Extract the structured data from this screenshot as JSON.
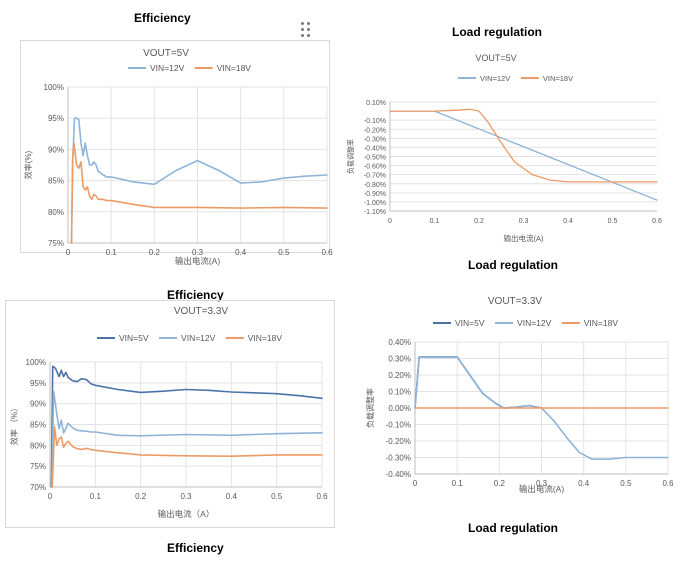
{
  "headings": {
    "top_left": "Efficiency",
    "top_right": "Load regulation",
    "mid_left": "Efficiency",
    "mid_right": "Load regulation",
    "bottom_left": "Efficiency",
    "bottom_right": "Load regulation"
  },
  "drag_handle": {
    "icon": "drag-handle-icon"
  },
  "chart_data": [
    {
      "id": "c1",
      "type": "line",
      "title": "VOUT=5V",
      "xlabel": "输出电流(A)",
      "ylabel": "效率(%)",
      "xlim": [
        0,
        0.6
      ],
      "ylim": [
        75,
        100
      ],
      "x_ticks": [
        "0",
        "0.1",
        "0.2",
        "0.3",
        "0.4",
        "0.5",
        "0.6"
      ],
      "y_ticks": [
        "75%",
        "80%",
        "85%",
        "90%",
        "95%",
        "100%"
      ],
      "grid": true,
      "legend": "top",
      "series": [
        {
          "name": "VIN=12V",
          "color": "#8fb4d9",
          "points": [
            [
              0.008,
              75
            ],
            [
              0.011,
              88
            ],
            [
              0.015,
              95
            ],
            [
              0.02,
              95
            ],
            [
              0.025,
              94.8
            ],
            [
              0.03,
              91
            ],
            [
              0.035,
              89
            ],
            [
              0.04,
              91
            ],
            [
              0.045,
              89
            ],
            [
              0.05,
              87.5
            ],
            [
              0.055,
              87.5
            ],
            [
              0.06,
              88
            ],
            [
              0.065,
              87.5
            ],
            [
              0.07,
              86.5
            ],
            [
              0.08,
              86
            ],
            [
              0.09,
              85.6
            ],
            [
              0.1,
              85.6
            ],
            [
              0.15,
              84.8
            ],
            [
              0.2,
              84.4
            ],
            [
              0.25,
              86.6
            ],
            [
              0.3,
              88.2
            ],
            [
              0.35,
              86.6
            ],
            [
              0.4,
              84.6
            ],
            [
              0.45,
              84.8
            ],
            [
              0.5,
              85.4
            ],
            [
              0.55,
              85.7
            ],
            [
              0.6,
              85.9
            ]
          ]
        },
        {
          "name": "VIN=18V",
          "color": "#ed9b66",
          "points": [
            [
              0.008,
              75
            ],
            [
              0.011,
              89
            ],
            [
              0.014,
              91
            ],
            [
              0.02,
              87.5
            ],
            [
              0.025,
              87
            ],
            [
              0.03,
              88
            ],
            [
              0.035,
              84
            ],
            [
              0.04,
              83.5
            ],
            [
              0.045,
              84
            ],
            [
              0.05,
              82.5
            ],
            [
              0.055,
              82
            ],
            [
              0.06,
              82.8
            ],
            [
              0.065,
              82.5
            ],
            [
              0.07,
              82
            ],
            [
              0.08,
              82
            ],
            [
              0.09,
              81.8
            ],
            [
              0.1,
              81.8
            ],
            [
              0.15,
              81.2
            ],
            [
              0.2,
              80.7
            ],
            [
              0.3,
              80.7
            ],
            [
              0.4,
              80.6
            ],
            [
              0.5,
              80.7
            ],
            [
              0.6,
              80.6
            ]
          ]
        }
      ]
    },
    {
      "id": "c2",
      "type": "line",
      "title": "VOUT=5V",
      "xlabel": "输出电流(A)",
      "ylabel": "负载调整率",
      "xlim": [
        0,
        0.6
      ],
      "ylim": [
        -1.1,
        0.1
      ],
      "x_ticks": [
        "0",
        "0.1",
        "0.2",
        "0.3",
        "0.4",
        "0.5",
        "0.6"
      ],
      "y_ticks": [
        "0.10%",
        "-0.10%",
        "-0.20%",
        "-0.30%",
        "-0.40%",
        "-0.50%",
        "-0.60%",
        "-0.70%",
        "-0.80%",
        "-0.90%",
        "-1.00%",
        "-1.10%"
      ],
      "grid": true,
      "legend": "top",
      "series": [
        {
          "name": "VIN=12V",
          "color": "#8fb4d9",
          "points": [
            [
              0,
              0
            ],
            [
              0.1,
              0
            ],
            [
              0.6,
              -0.98
            ]
          ]
        },
        {
          "name": "VIN=18V",
          "color": "#ed9b66",
          "points": [
            [
              0,
              0
            ],
            [
              0.1,
              0
            ],
            [
              0.15,
              0.01
            ],
            [
              0.18,
              0.02
            ],
            [
              0.2,
              0
            ],
            [
              0.22,
              -0.12
            ],
            [
              0.25,
              -0.35
            ],
            [
              0.28,
              -0.56
            ],
            [
              0.32,
              -0.7
            ],
            [
              0.36,
              -0.76
            ],
            [
              0.4,
              -0.78
            ],
            [
              0.45,
              -0.78
            ],
            [
              0.5,
              -0.78
            ],
            [
              0.6,
              -0.78
            ]
          ]
        }
      ]
    },
    {
      "id": "c3",
      "type": "line",
      "title": "VOUT=3.3V",
      "xlabel": "输出电流（A）",
      "ylabel": "效率 （%）",
      "xlim": [
        0,
        0.6
      ],
      "ylim": [
        70,
        100
      ],
      "x_ticks": [
        "0",
        "0.1",
        "0.2",
        "0.3",
        "0.4",
        "0.5",
        "0.6"
      ],
      "y_ticks": [
        "70%",
        "75%",
        "80%",
        "85%",
        "90%",
        "95%",
        "100%"
      ],
      "grid": true,
      "legend": "top",
      "series": [
        {
          "name": "VIN=5V",
          "color": "#4b73a8",
          "points": [
            [
              0.003,
              70
            ],
            [
              0.006,
              99
            ],
            [
              0.012,
              98.5
            ],
            [
              0.02,
              96.5
            ],
            [
              0.025,
              98
            ],
            [
              0.03,
              96.5
            ],
            [
              0.035,
              97.5
            ],
            [
              0.04,
              96.3
            ],
            [
              0.05,
              95.5
            ],
            [
              0.06,
              95.3
            ],
            [
              0.07,
              96
            ],
            [
              0.08,
              95.8
            ],
            [
              0.09,
              94.8
            ],
            [
              0.1,
              94.4
            ],
            [
              0.15,
              93.4
            ],
            [
              0.2,
              92.7
            ],
            [
              0.25,
              93
            ],
            [
              0.3,
              93.4
            ],
            [
              0.35,
              93.2
            ],
            [
              0.4,
              92.8
            ],
            [
              0.45,
              92.6
            ],
            [
              0.5,
              92.4
            ],
            [
              0.55,
              91.9
            ],
            [
              0.6,
              91.3
            ]
          ]
        },
        {
          "name": "VIN=12V",
          "color": "#8fb4d9",
          "points": [
            [
              0.004,
              70
            ],
            [
              0.008,
              93
            ],
            [
              0.015,
              87.5
            ],
            [
              0.02,
              84
            ],
            [
              0.025,
              86
            ],
            [
              0.03,
              83
            ],
            [
              0.035,
              84
            ],
            [
              0.04,
              85.3
            ],
            [
              0.05,
              84.2
            ],
            [
              0.06,
              83.6
            ],
            [
              0.07,
              83.5
            ],
            [
              0.08,
              83.4
            ],
            [
              0.09,
              83.2
            ],
            [
              0.1,
              83.2
            ],
            [
              0.15,
              82.4
            ],
            [
              0.2,
              82.3
            ],
            [
              0.3,
              82.6
            ],
            [
              0.4,
              82.4
            ],
            [
              0.5,
              82.8
            ],
            [
              0.6,
              83
            ]
          ]
        },
        {
          "name": "VIN=18V",
          "color": "#ed9b66",
          "points": [
            [
              0.005,
              70
            ],
            [
              0.01,
              84.5
            ],
            [
              0.015,
              80
            ],
            [
              0.02,
              81.5
            ],
            [
              0.025,
              82
            ],
            [
              0.03,
              79.5
            ],
            [
              0.035,
              80.5
            ],
            [
              0.04,
              81
            ],
            [
              0.05,
              79.7
            ],
            [
              0.06,
              79.2
            ],
            [
              0.07,
              79
            ],
            [
              0.08,
              79.3
            ],
            [
              0.09,
              79
            ],
            [
              0.1,
              78.8
            ],
            [
              0.15,
              78.2
            ],
            [
              0.2,
              77.7
            ],
            [
              0.3,
              77.5
            ],
            [
              0.4,
              77.4
            ],
            [
              0.5,
              77.7
            ],
            [
              0.6,
              77.7
            ]
          ]
        }
      ]
    },
    {
      "id": "c4",
      "type": "line",
      "title": "VOUT=3.3V",
      "xlabel": "输出电流(A)",
      "ylabel": "负载调整率",
      "xlim": [
        0,
        0.6
      ],
      "ylim": [
        -0.4,
        0.4
      ],
      "x_ticks": [
        "0",
        "0.1",
        "0.2",
        "0.3",
        "0.4",
        "0.5",
        "0.6"
      ],
      "y_ticks": [
        "0.40%",
        "0.30%",
        "0.20%",
        "0.10%",
        "0.00%",
        "-0.10%",
        "-0.20%",
        "-0.30%",
        "-0.40%"
      ],
      "grid": true,
      "legend": "top",
      "series": [
        {
          "name": "VIN=5V",
          "color": "#4b73a8",
          "points": [
            [
              0,
              0
            ],
            [
              0.01,
              0.31
            ],
            [
              0.05,
              0.31
            ],
            [
              0.1,
              0.31
            ],
            [
              0.13,
              0.2
            ],
            [
              0.16,
              0.09
            ],
            [
              0.19,
              0.03
            ],
            [
              0.21,
              0
            ],
            [
              0.24,
              0.005
            ],
            [
              0.27,
              0.015
            ],
            [
              0.3,
              0
            ]
          ]
        },
        {
          "name": "VIN=12V",
          "color": "#8fb4d9",
          "points": [
            [
              0,
              0
            ],
            [
              0.01,
              0.31
            ],
            [
              0.05,
              0.31
            ],
            [
              0.1,
              0.31
            ],
            [
              0.13,
              0.2
            ],
            [
              0.16,
              0.09
            ],
            [
              0.19,
              0.03
            ],
            [
              0.21,
              0
            ],
            [
              0.24,
              0.005
            ],
            [
              0.27,
              0.015
            ],
            [
              0.3,
              0
            ],
            [
              0.33,
              -0.08
            ],
            [
              0.36,
              -0.18
            ],
            [
              0.39,
              -0.27
            ],
            [
              0.42,
              -0.31
            ],
            [
              0.46,
              -0.31
            ],
            [
              0.5,
              -0.3
            ],
            [
              0.55,
              -0.3
            ],
            [
              0.6,
              -0.3
            ]
          ]
        },
        {
          "name": "VIN=18V",
          "color": "#ed9b66",
          "points": [
            [
              0,
              0
            ],
            [
              0.6,
              0
            ]
          ]
        }
      ]
    }
  ]
}
